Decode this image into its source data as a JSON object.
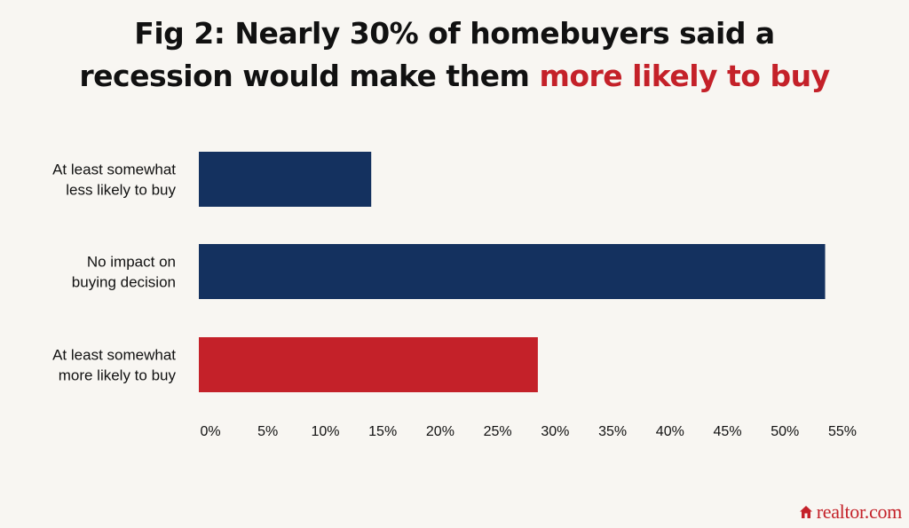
{
  "title": {
    "line1": "Fig 2: Nearly 30% of homebuyers said a",
    "line2_prefix": "recession would make them ",
    "line2_highlight": "more likely to buy"
  },
  "colors": {
    "background": "#f8f6f2",
    "navy": "#14315f",
    "red": "#c42129",
    "text": "#111111"
  },
  "chart_data": {
    "type": "bar",
    "orientation": "horizontal",
    "title": "Fig 2: Nearly 30% of homebuyers said a recession would make them more likely to buy",
    "categories": [
      [
        "At least somewhat",
        "less likely to buy"
      ],
      [
        "No impact on",
        "buying decision"
      ],
      [
        "At least somewhat",
        "more likely to buy"
      ]
    ],
    "values": [
      15,
      54.5,
      29.5
    ],
    "bar_colors": [
      "#14315f",
      "#14315f",
      "#c42129"
    ],
    "xlim": [
      0,
      55
    ],
    "xticks": [
      0,
      5,
      10,
      15,
      20,
      25,
      30,
      35,
      40,
      45,
      50,
      55
    ],
    "tick_suffix": "%",
    "grid": false,
    "legend": "none"
  },
  "logo": {
    "text": "realtor.com",
    "icon": "house-icon"
  }
}
